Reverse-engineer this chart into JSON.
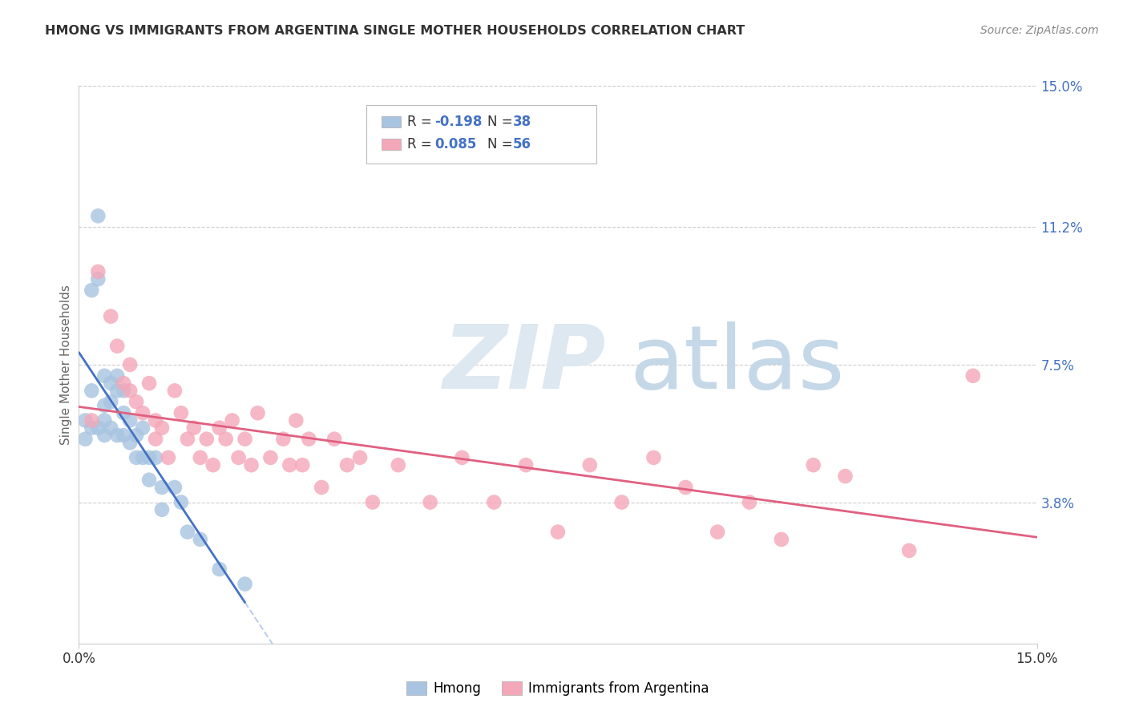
{
  "title": "HMONG VS IMMIGRANTS FROM ARGENTINA SINGLE MOTHER HOUSEHOLDS CORRELATION CHART",
  "source": "Source: ZipAtlas.com",
  "ylabel": "Single Mother Households",
  "xlim": [
    0.0,
    0.15
  ],
  "ylim": [
    0.0,
    0.15
  ],
  "ytick_labels": [
    "3.8%",
    "7.5%",
    "11.2%",
    "15.0%"
  ],
  "ytick_positions": [
    0.038,
    0.075,
    0.112,
    0.15
  ],
  "grid_color": "#cccccc",
  "background_color": "#ffffff",
  "hmong_color": "#a8c4e0",
  "argentina_color": "#f4a7b9",
  "hmong_line_color": "#4472c4",
  "argentina_line_color": "#e06080",
  "hmong_R": -0.198,
  "hmong_N": 38,
  "argentina_R": 0.085,
  "argentina_N": 56,
  "hmong_x": [
    0.001,
    0.001,
    0.002,
    0.002,
    0.002,
    0.003,
    0.003,
    0.003,
    0.004,
    0.004,
    0.004,
    0.004,
    0.005,
    0.005,
    0.005,
    0.006,
    0.006,
    0.006,
    0.007,
    0.007,
    0.007,
    0.008,
    0.008,
    0.009,
    0.009,
    0.01,
    0.01,
    0.011,
    0.011,
    0.012,
    0.013,
    0.013,
    0.015,
    0.016,
    0.017,
    0.019,
    0.022,
    0.026
  ],
  "hmong_y": [
    0.06,
    0.055,
    0.095,
    0.068,
    0.058,
    0.115,
    0.098,
    0.058,
    0.072,
    0.064,
    0.06,
    0.056,
    0.07,
    0.065,
    0.058,
    0.072,
    0.068,
    0.056,
    0.068,
    0.062,
    0.056,
    0.06,
    0.054,
    0.056,
    0.05,
    0.058,
    0.05,
    0.05,
    0.044,
    0.05,
    0.042,
    0.036,
    0.042,
    0.038,
    0.03,
    0.028,
    0.02,
    0.016
  ],
  "argentina_x": [
    0.002,
    0.003,
    0.005,
    0.006,
    0.007,
    0.008,
    0.008,
    0.009,
    0.01,
    0.011,
    0.012,
    0.012,
    0.013,
    0.014,
    0.015,
    0.016,
    0.017,
    0.018,
    0.019,
    0.02,
    0.021,
    0.022,
    0.023,
    0.024,
    0.025,
    0.026,
    0.027,
    0.028,
    0.03,
    0.032,
    0.033,
    0.034,
    0.035,
    0.036,
    0.038,
    0.04,
    0.042,
    0.044,
    0.046,
    0.05,
    0.055,
    0.06,
    0.065,
    0.07,
    0.075,
    0.08,
    0.085,
    0.09,
    0.095,
    0.1,
    0.105,
    0.11,
    0.115,
    0.12,
    0.13,
    0.14
  ],
  "argentina_y": [
    0.06,
    0.1,
    0.088,
    0.08,
    0.07,
    0.075,
    0.068,
    0.065,
    0.062,
    0.07,
    0.06,
    0.055,
    0.058,
    0.05,
    0.068,
    0.062,
    0.055,
    0.058,
    0.05,
    0.055,
    0.048,
    0.058,
    0.055,
    0.06,
    0.05,
    0.055,
    0.048,
    0.062,
    0.05,
    0.055,
    0.048,
    0.06,
    0.048,
    0.055,
    0.042,
    0.055,
    0.048,
    0.05,
    0.038,
    0.048,
    0.038,
    0.05,
    0.038,
    0.048,
    0.03,
    0.048,
    0.038,
    0.05,
    0.042,
    0.03,
    0.038,
    0.028,
    0.048,
    0.045,
    0.025,
    0.072
  ]
}
